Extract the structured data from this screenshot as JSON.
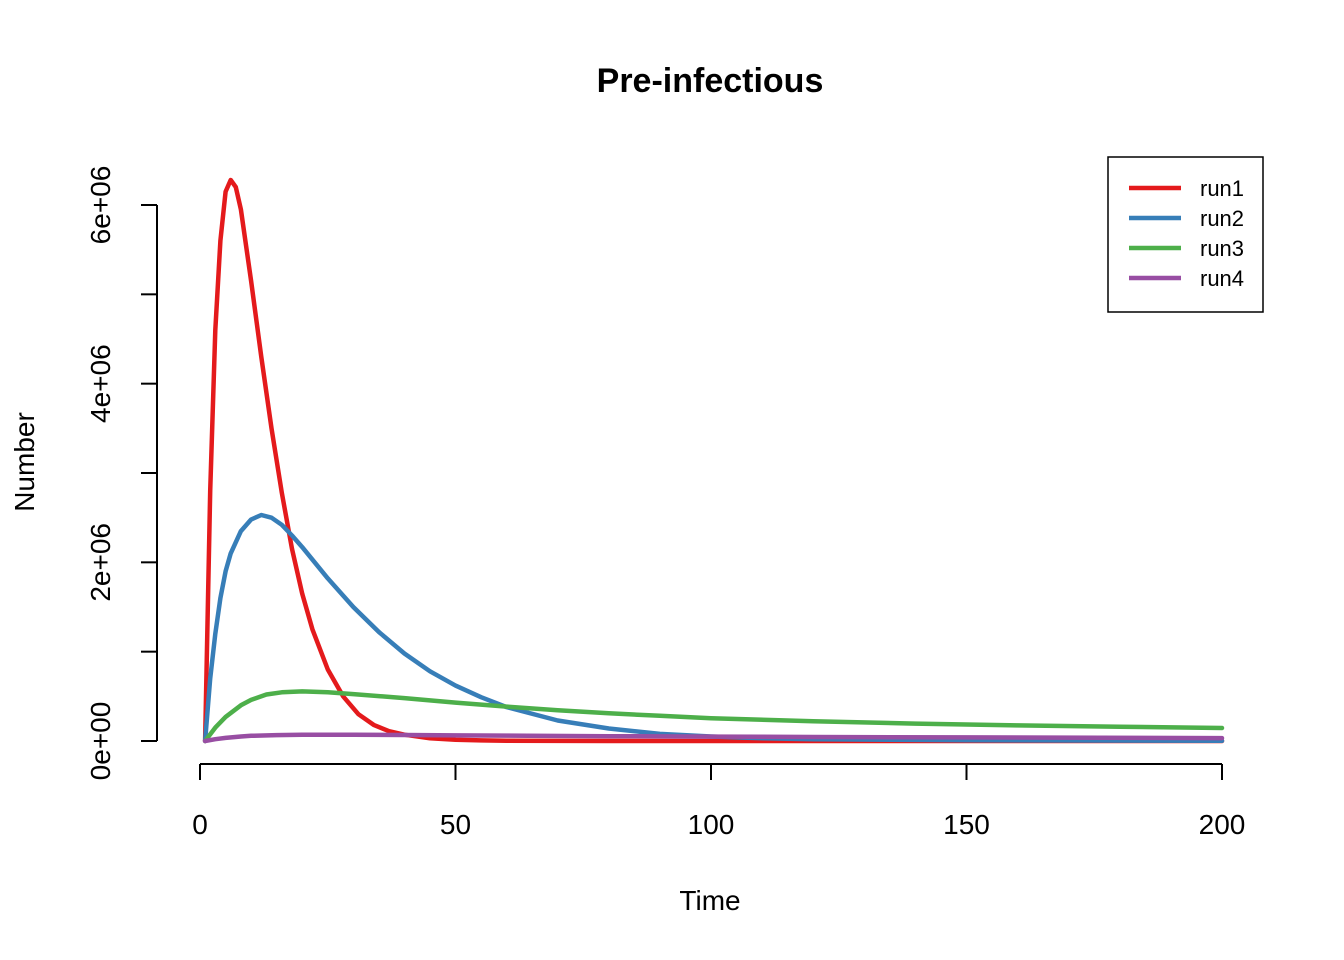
{
  "chart_data": {
    "type": "line",
    "title": "Pre-infectious",
    "xlabel": "Time",
    "ylabel": "Number",
    "xlim": [
      0,
      200
    ],
    "ylim": [
      0,
      6000000
    ],
    "xticks": [
      0,
      50,
      100,
      150,
      200
    ],
    "xtick_labels": [
      "0",
      "50",
      "100",
      "150",
      "200"
    ],
    "yticks": [
      0,
      1000000,
      2000000,
      3000000,
      4000000,
      5000000,
      6000000
    ],
    "ytick_labels": [
      "0e+00",
      "",
      "2e+06",
      "",
      "4e+06",
      "",
      "6e+06"
    ],
    "grid": false,
    "legend_position": "top-right",
    "series": [
      {
        "name": "run1",
        "color": "#E41A1C",
        "x": [
          1,
          2,
          3,
          4,
          5,
          6,
          7,
          8,
          10,
          12,
          14,
          16,
          18,
          20,
          22,
          25,
          28,
          31,
          34,
          37,
          40,
          45,
          50,
          55,
          60,
          70,
          80,
          100,
          150,
          200
        ],
        "y": [
          0,
          2800000,
          4600000,
          5600000,
          6150000,
          6280000,
          6200000,
          5950000,
          5150000,
          4300000,
          3500000,
          2780000,
          2150000,
          1650000,
          1250000,
          800000,
          500000,
          300000,
          180000,
          110000,
          70000,
          30000,
          15000,
          7000,
          3000,
          1000,
          0,
          0,
          0,
          0
        ]
      },
      {
        "name": "run2",
        "color": "#377EB8",
        "x": [
          1,
          2,
          3,
          4,
          5,
          6,
          8,
          10,
          12,
          14,
          16,
          18,
          20,
          25,
          30,
          35,
          40,
          45,
          50,
          55,
          60,
          70,
          80,
          90,
          100,
          110,
          120,
          150,
          200
        ],
        "y": [
          0,
          700000,
          1200000,
          1600000,
          1900000,
          2100000,
          2350000,
          2480000,
          2530000,
          2500000,
          2420000,
          2300000,
          2170000,
          1820000,
          1500000,
          1220000,
          980000,
          780000,
          620000,
          490000,
          380000,
          230000,
          140000,
          80000,
          50000,
          30000,
          20000,
          8000,
          2000
        ]
      },
      {
        "name": "run3",
        "color": "#4DAF4A",
        "x": [
          1,
          3,
          5,
          8,
          10,
          13,
          16,
          20,
          25,
          30,
          40,
          50,
          60,
          70,
          80,
          90,
          100,
          120,
          140,
          160,
          180,
          200
        ],
        "y": [
          0,
          150000,
          270000,
          400000,
          460000,
          520000,
          545000,
          555000,
          545000,
          525000,
          480000,
          430000,
          385000,
          345000,
          310000,
          282000,
          255000,
          220000,
          195000,
          175000,
          160000,
          145000
        ]
      },
      {
        "name": "run4",
        "color": "#984EA3",
        "x": [
          1,
          3,
          5,
          8,
          10,
          15,
          20,
          25,
          30,
          40,
          50,
          60,
          80,
          100,
          120,
          150,
          200
        ],
        "y": [
          0,
          20000,
          35000,
          50000,
          58000,
          66000,
          70000,
          71000,
          70000,
          67000,
          63000,
          60000,
          54000,
          49000,
          45000,
          40000,
          33000
        ]
      }
    ]
  }
}
